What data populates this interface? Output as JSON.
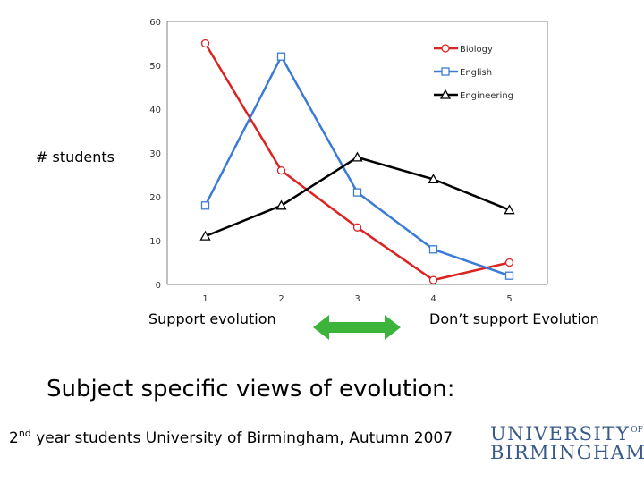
{
  "chart_data": {
    "type": "line",
    "x": [
      1,
      2,
      3,
      4,
      5
    ],
    "ylim": [
      0,
      60
    ],
    "yticks": [
      0,
      10,
      20,
      30,
      40,
      50,
      60
    ],
    "ylabel": "# students",
    "legend_position": "top-right",
    "series": [
      {
        "name": "Biology",
        "color": "#dd2222",
        "marker": "circle",
        "values": [
          55,
          26,
          13,
          1,
          5
        ]
      },
      {
        "name": "English",
        "color": "#3a7bd5",
        "marker": "square",
        "values": [
          18,
          52,
          21,
          8,
          2
        ]
      },
      {
        "name": "Engineering",
        "color": "#000000",
        "marker": "triangle",
        "values": [
          11,
          18,
          29,
          24,
          17
        ]
      }
    ]
  },
  "captions": {
    "left": "Support evolution",
    "right": "Don’t support Evolution"
  },
  "arrow_color": "#3cb43c",
  "title": "Subject specific views of evolution:",
  "subtitle": {
    "ordinal_num": "2",
    "ordinal_suffix": "nd",
    "rest": " year students University of Birmingham, Autumn 2007"
  },
  "logo": {
    "line1": "UNIVERSITY",
    "of": "OF",
    "line2": "BIRMINGHAM"
  }
}
